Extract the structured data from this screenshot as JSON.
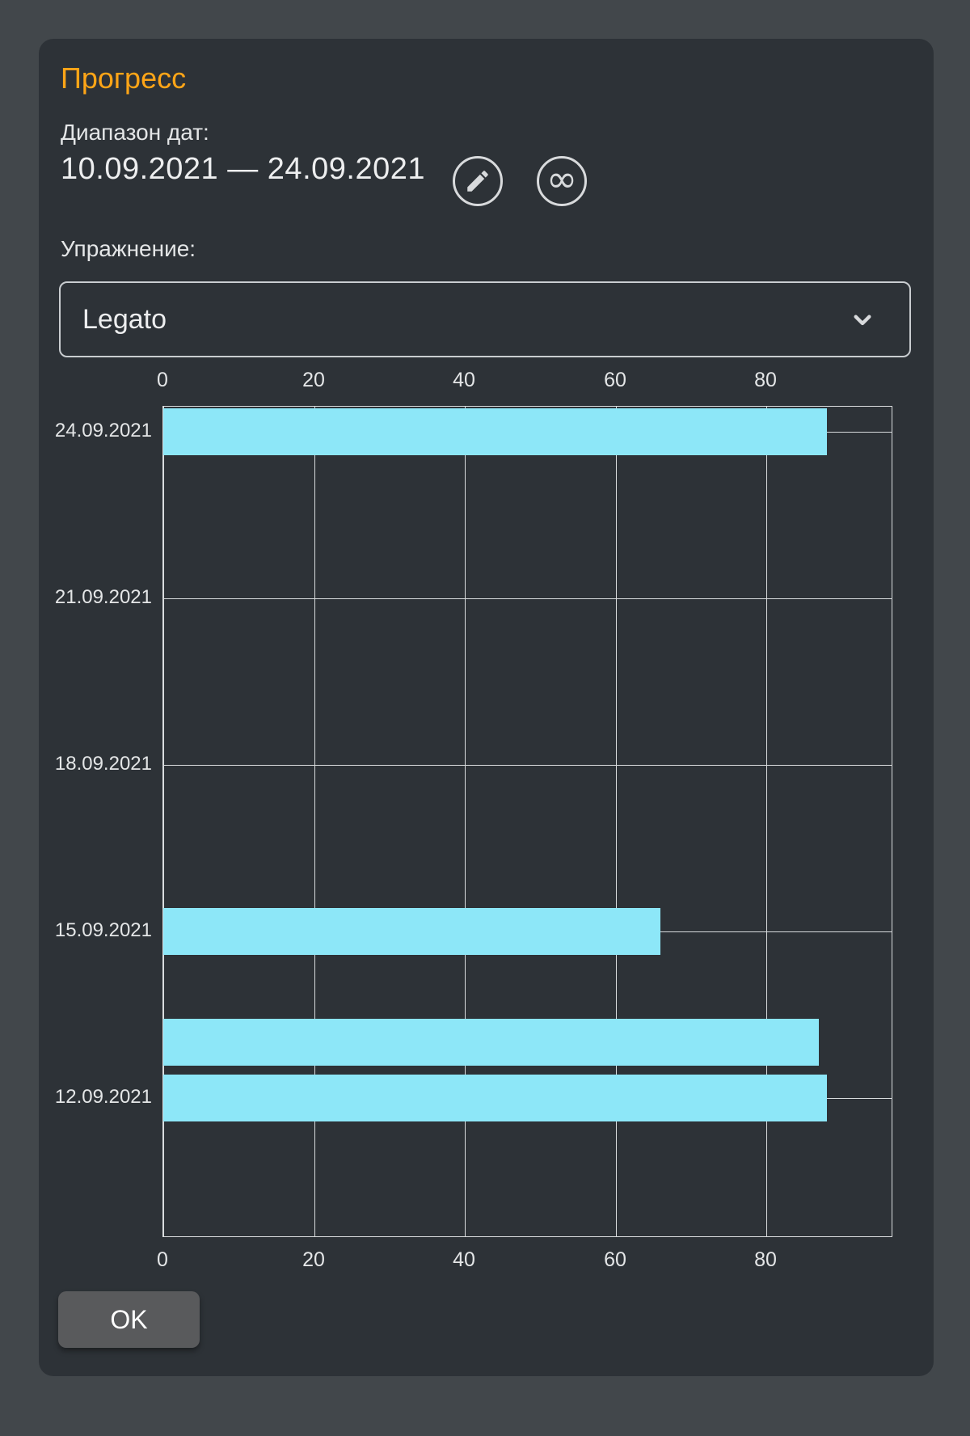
{
  "dialog": {
    "title": "Прогресс",
    "date_range_label": "Диапазон дат:",
    "date_range_value": "10.09.2021 — 24.09.2021",
    "exercise_label": "Упражнение:",
    "exercise_selected": "Legato",
    "ok_label": "OK",
    "icons": {
      "edit_button": "pencil-icon",
      "endless_range_button": "infinity-icon",
      "exercise_dropdown": "chevron-down-icon"
    }
  },
  "colors": {
    "background": "#42474B",
    "dialog": "#2D3237",
    "accent_title": "#FFA517",
    "text": "#E4E6E7",
    "bar": "#8DE7F8",
    "grid": "#D9DCDE",
    "button": "#595A5C"
  },
  "chart_data": {
    "type": "bar",
    "orientation": "horizontal",
    "title": "",
    "xlabel": "",
    "ylabel": "",
    "x_ticks": [
      0,
      20,
      40,
      60,
      80
    ],
    "xlim": [
      0,
      96.8
    ],
    "x_axis_label_rows": [
      "top",
      "bottom"
    ],
    "y_tick_labels": [
      "24.09.2021",
      "21.09.2021",
      "18.09.2021",
      "15.09.2021",
      "12.09.2021"
    ],
    "grid": true,
    "legend": false,
    "bar_color": "#8DE7F8",
    "bars": [
      {
        "date": "24.09.2021",
        "value": 88
      },
      {
        "date": "15.09.2021",
        "value": 66
      },
      {
        "date": "13.09.2021",
        "value": 87
      },
      {
        "date": "12.09.2021",
        "value": 88
      }
    ]
  }
}
